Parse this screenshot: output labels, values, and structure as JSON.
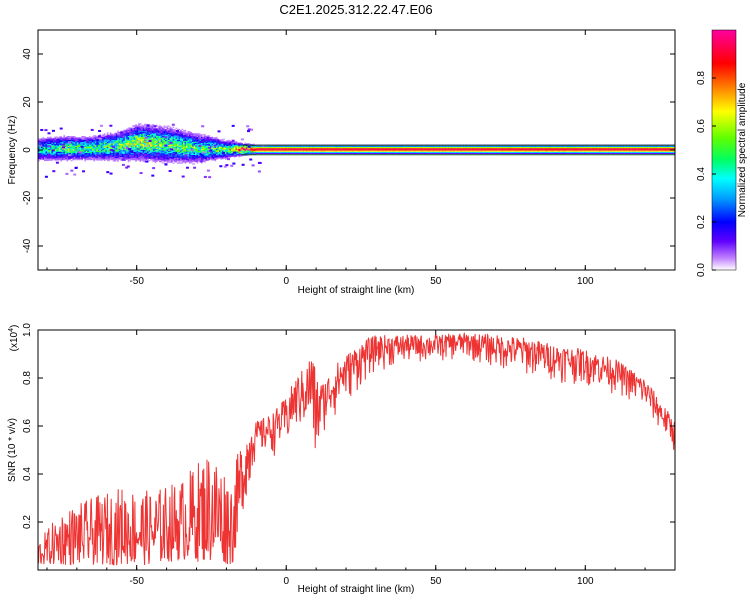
{
  "figure": {
    "title": "C2E1.2025.312.22.47.E06"
  },
  "chart_data": [
    {
      "type": "heatmap",
      "title": "C2E1.2025.312.22.47.E06",
      "xlabel": "Height of straight line (km)",
      "ylabel": "Frequency (Hz)",
      "xlim": [
        -83,
        130
      ],
      "ylim": [
        -50,
        50
      ],
      "x_ticks": [
        -50,
        0,
        50,
        100
      ],
      "x_tick_labels": [
        "-50",
        "0",
        "50",
        "100"
      ],
      "y_ticks": [
        -40,
        -20,
        0,
        20,
        40
      ],
      "y_tick_labels": [
        "-40",
        "-20",
        "0",
        "20",
        "40"
      ],
      "colorbar": {
        "label": "Normalized spectral amplitude",
        "range": [
          0,
          1
        ],
        "ticks": [
          0.0,
          0.2,
          0.4,
          0.6,
          0.8
        ],
        "tick_labels": [
          "0.0",
          "0.2",
          "0.4",
          "0.6",
          "0.8"
        ],
        "colors": [
          "#ffffff",
          "#c080ff",
          "#6000ff",
          "#0000ff",
          "#00a0ff",
          "#00ffff",
          "#00ff60",
          "#60ff00",
          "#ffff00",
          "#ff8000",
          "#ff0000",
          "#ff00a0"
        ]
      },
      "band": {
        "description_x": [
          -83,
          -75,
          -65,
          -55,
          -50,
          -40,
          -30,
          -20,
          -15,
          -10,
          0,
          10,
          20,
          50,
          80,
          110,
          130
        ],
        "center_hz": [
          0,
          0.5,
          0.5,
          1.5,
          3,
          2,
          0.5,
          0,
          0,
          0,
          0,
          0,
          0,
          0,
          0,
          0,
          0
        ],
        "halfwidth_hz": [
          4,
          4,
          4,
          5,
          6,
          6,
          5,
          3,
          2,
          1.5,
          1.5,
          1.5,
          1.5,
          1.5,
          1.5,
          1.5,
          1.5
        ],
        "amplitude": [
          0.35,
          0.5,
          0.45,
          0.5,
          0.55,
          0.5,
          0.45,
          0.5,
          0.85,
          0.95,
          0.95,
          0.95,
          0.95,
          0.95,
          0.95,
          0.95,
          0.95
        ]
      }
    },
    {
      "type": "line",
      "xlabel": "Height of straight line (km)",
      "ylabel": "SNR (10 * v/v)",
      "y_multiplier_label": "(x10",
      "y_multiplier_exp": "4",
      "xlim": [
        -83,
        130
      ],
      "ylim": [
        0,
        1.0
      ],
      "x_ticks": [
        -50,
        0,
        50,
        100
      ],
      "x_tick_labels": [
        "-50",
        "0",
        "50",
        "100"
      ],
      "y_ticks": [
        0.2,
        0.4,
        0.6,
        0.8,
        1.0
      ],
      "y_tick_labels": [
        "0.2",
        "0.4",
        "0.6",
        "0.8",
        "1.0"
      ],
      "color": "#ee3333",
      "series": [
        {
          "name": "SNR",
          "x": [
            -83,
            -75,
            -65,
            -55,
            -45,
            -35,
            -25,
            -18,
            -14,
            -10,
            -5,
            0,
            3,
            7,
            8.5,
            10,
            12,
            18,
            25,
            30,
            40,
            50,
            60,
            70,
            80,
            90,
            100,
            110,
            120,
            130
          ],
          "y_max": [
            0.12,
            0.25,
            0.3,
            0.35,
            0.33,
            0.38,
            0.52,
            0.38,
            0.62,
            0.62,
            0.65,
            0.72,
            0.8,
            0.86,
            0.93,
            0.82,
            0.78,
            0.88,
            0.95,
            0.98,
            0.98,
            0.98,
            0.99,
            0.98,
            0.97,
            0.94,
            0.92,
            0.88,
            0.8,
            0.62
          ],
          "y_min": [
            0.02,
            0.02,
            0.02,
            0.02,
            0.02,
            0.04,
            0.03,
            0.02,
            0.28,
            0.45,
            0.47,
            0.48,
            0.55,
            0.55,
            0.48,
            0.34,
            0.55,
            0.65,
            0.75,
            0.82,
            0.85,
            0.86,
            0.87,
            0.83,
            0.8,
            0.78,
            0.76,
            0.73,
            0.65,
            0.48
          ]
        }
      ]
    }
  ]
}
